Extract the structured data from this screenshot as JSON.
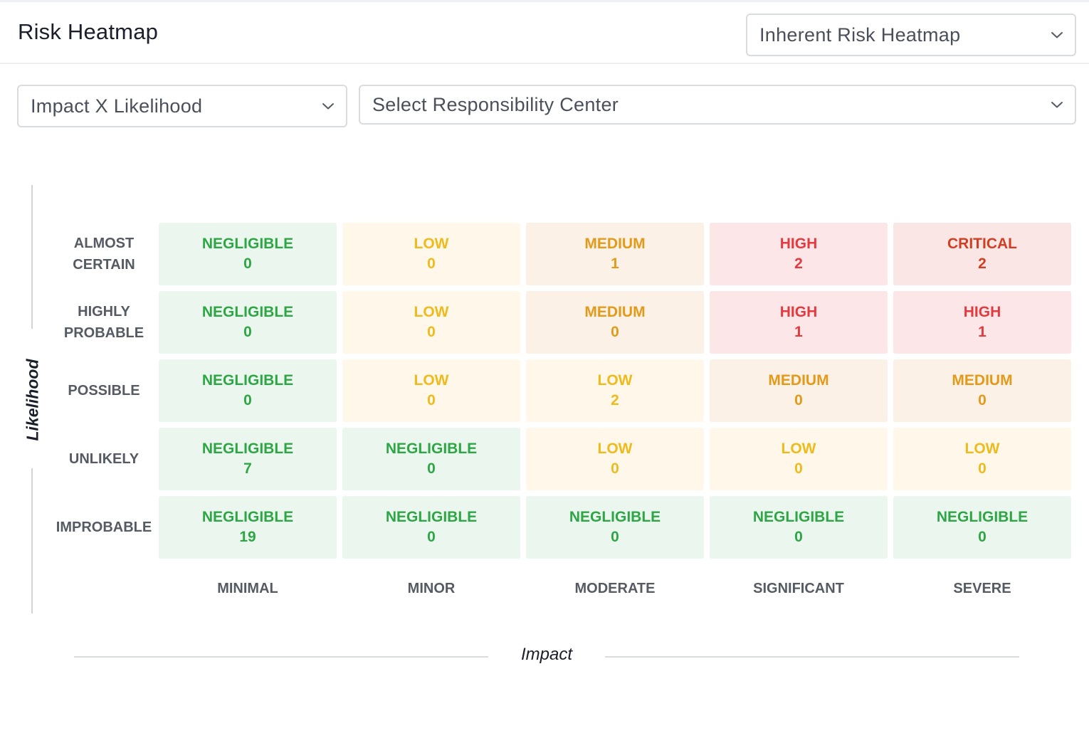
{
  "header": {
    "title": "Risk Heatmap",
    "heatmap_type_select": {
      "value": "Inherent Risk Heatmap"
    }
  },
  "filters": {
    "view_mode_select": {
      "value": "Impact X Likelihood"
    },
    "responsibility_select": {
      "placeholder": "Select Responsibility Center"
    }
  },
  "icons": {
    "dropdown": "chevron-down-icon"
  },
  "heatmap": {
    "y_axis_title": "Likelihood",
    "x_axis_title": "Impact",
    "rows": [
      "ALMOST\nCERTAIN",
      "HIGHLY\nPROBABLE",
      "POSSIBLE",
      "UNLIKELY",
      "IMPROBABLE"
    ],
    "columns": [
      "MINIMAL",
      "MINOR",
      "MODERATE",
      "SIGNIFICANT",
      "SEVERE"
    ],
    "level_colors": {
      "NEGLIGIBLE": {
        "bg": "#ebf6ee",
        "fg": "#2fa646"
      },
      "LOW": {
        "bg": "#fff8ea",
        "fg": "#edbb1d"
      },
      "MEDIUM": {
        "bg": "#fcf1e6",
        "fg": "#e39a1a"
      },
      "HIGH": {
        "bg": "#fde6e8",
        "fg": "#e23a3e"
      },
      "CRITICAL": {
        "bg": "#fae6e4",
        "fg": "#d13e22"
      }
    },
    "cells": [
      [
        {
          "level": "NEGLIGIBLE",
          "count": "0"
        },
        {
          "level": "LOW",
          "count": "0"
        },
        {
          "level": "MEDIUM",
          "count": "1"
        },
        {
          "level": "HIGH",
          "count": "2"
        },
        {
          "level": "CRITICAL",
          "count": "2"
        }
      ],
      [
        {
          "level": "NEGLIGIBLE",
          "count": "0"
        },
        {
          "level": "LOW",
          "count": "0"
        },
        {
          "level": "MEDIUM",
          "count": "0"
        },
        {
          "level": "HIGH",
          "count": "1"
        },
        {
          "level": "HIGH",
          "count": "1"
        }
      ],
      [
        {
          "level": "NEGLIGIBLE",
          "count": "0"
        },
        {
          "level": "LOW",
          "count": "0"
        },
        {
          "level": "LOW",
          "count": "2"
        },
        {
          "level": "MEDIUM",
          "count": "0"
        },
        {
          "level": "MEDIUM",
          "count": "0"
        }
      ],
      [
        {
          "level": "NEGLIGIBLE",
          "count": "7"
        },
        {
          "level": "NEGLIGIBLE",
          "count": "0"
        },
        {
          "level": "LOW",
          "count": "0"
        },
        {
          "level": "LOW",
          "count": "0"
        },
        {
          "level": "LOW",
          "count": "0"
        }
      ],
      [
        {
          "level": "NEGLIGIBLE",
          "count": "19"
        },
        {
          "level": "NEGLIGIBLE",
          "count": "0"
        },
        {
          "level": "NEGLIGIBLE",
          "count": "0"
        },
        {
          "level": "NEGLIGIBLE",
          "count": "0"
        },
        {
          "level": "NEGLIGIBLE",
          "count": "0"
        }
      ]
    ]
  }
}
